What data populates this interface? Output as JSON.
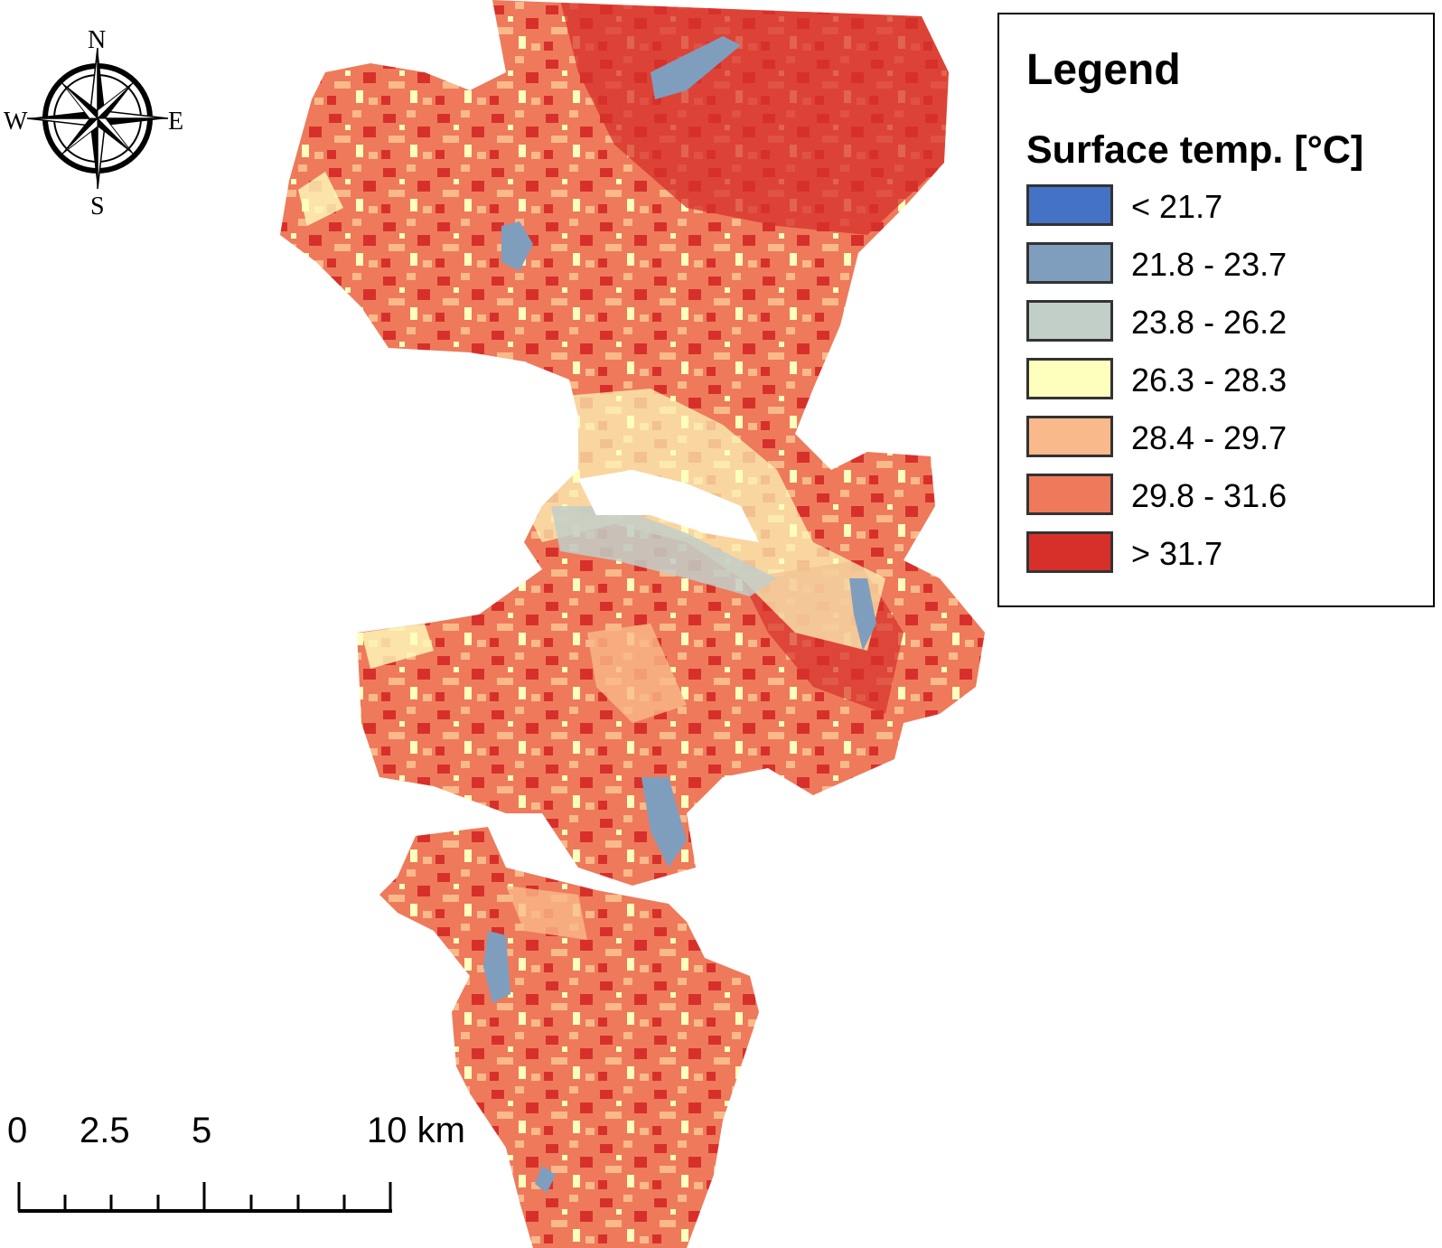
{
  "compass": {
    "north": "N",
    "south": "S",
    "east": "E",
    "west": "W"
  },
  "legend": {
    "title": "Legend",
    "subtitle": "Surface temp. [°C]",
    "classes": [
      {
        "label": "< 21.7",
        "color": "#4472c4"
      },
      {
        "label": "21.8 - 23.7",
        "color": "#7f9ebd"
      },
      {
        "label": "23.8 - 26.2",
        "color": "#c2cec8"
      },
      {
        "label": "26.3 - 28.3",
        "color": "#fefebd"
      },
      {
        "label": "28.4 - 29.7",
        "color": "#f9b98a"
      },
      {
        "label": "29.8 - 31.6",
        "color": "#ee7a5b"
      },
      {
        "label": "> 31.7",
        "color": "#d7302b"
      }
    ]
  },
  "scale_bar": {
    "labels": [
      "0",
      "2.5",
      "5",
      "10 km"
    ]
  }
}
